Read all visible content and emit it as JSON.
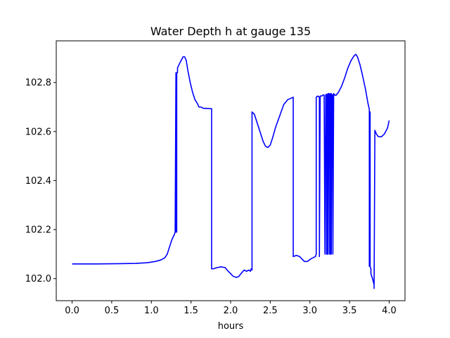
{
  "chart_data": {
    "type": "line",
    "title": "Water Depth h at gauge 135",
    "xlabel": "hours",
    "ylabel": "",
    "xlim": [
      -0.2,
      4.2
    ],
    "ylim": [
      101.91,
      102.97
    ],
    "xticks": [
      0.0,
      0.5,
      1.0,
      1.5,
      2.0,
      2.5,
      3.0,
      3.5,
      4.0
    ],
    "xtick_labels": [
      "0.0",
      "0.5",
      "1.0",
      "1.5",
      "2.0",
      "2.5",
      "3.0",
      "3.5",
      "4.0"
    ],
    "yticks": [
      102.0,
      102.2,
      102.4,
      102.6,
      102.8
    ],
    "ytick_labels": [
      "102.0",
      "102.2",
      "102.4",
      "102.6",
      "102.8"
    ],
    "grid": false,
    "line_color": "#0000ff",
    "series": [
      {
        "x": [
          0.0,
          0.3,
          0.6,
          0.8,
          0.95,
          1.05,
          1.12,
          1.17,
          1.2,
          1.23,
          1.26,
          1.29,
          1.3,
          1.31,
          1.31,
          1.32,
          1.32,
          1.33,
          1.33,
          1.36,
          1.4,
          1.42,
          1.44,
          1.46,
          1.49,
          1.52,
          1.55,
          1.58,
          1.6,
          1.63,
          1.65,
          1.7,
          1.76,
          1.76,
          1.78,
          1.83,
          1.88,
          1.93,
          1.97,
          2.0,
          2.03,
          2.07,
          2.1,
          2.13,
          2.17,
          2.2,
          2.23,
          2.25,
          2.26,
          2.27,
          2.27,
          2.3,
          2.33,
          2.37,
          2.41,
          2.44,
          2.47,
          2.5,
          2.53,
          2.57,
          2.62,
          2.67,
          2.72,
          2.79,
          2.79,
          2.83,
          2.87,
          2.9,
          2.93,
          2.97,
          3.01,
          3.04,
          3.07,
          3.08,
          3.08,
          3.1,
          3.12,
          3.12,
          3.13,
          3.13,
          3.15,
          3.17,
          3.18,
          3.19,
          3.2,
          3.21,
          3.21,
          3.22,
          3.22,
          3.23,
          3.23,
          3.24,
          3.25,
          3.25,
          3.26,
          3.26,
          3.27,
          3.27,
          3.28,
          3.29,
          3.29,
          3.3,
          3.31,
          3.32,
          3.33,
          3.36,
          3.4,
          3.44,
          3.48,
          3.52,
          3.56,
          3.58,
          3.6,
          3.63,
          3.66,
          3.7,
          3.73,
          3.75,
          3.75,
          3.76,
          3.76,
          3.77,
          3.77,
          3.79,
          3.81,
          3.81,
          3.82,
          3.84,
          3.86,
          3.9,
          3.94,
          3.98,
          4.0
        ],
        "y": [
          102.06,
          102.06,
          102.061,
          102.062,
          102.065,
          102.07,
          102.076,
          102.085,
          102.1,
          102.13,
          102.16,
          102.18,
          102.19,
          102.84,
          102.19,
          102.19,
          102.84,
          102.84,
          102.86,
          102.88,
          102.905,
          102.905,
          102.89,
          102.85,
          102.8,
          102.76,
          102.73,
          102.715,
          102.7,
          102.7,
          102.695,
          102.694,
          102.693,
          102.04,
          102.04,
          102.045,
          102.048,
          102.045,
          102.03,
          102.02,
          102.01,
          102.005,
          102.008,
          102.02,
          102.035,
          102.03,
          102.035,
          102.03,
          102.04,
          102.035,
          102.68,
          102.67,
          102.64,
          102.6,
          102.56,
          102.54,
          102.535,
          102.545,
          102.575,
          102.62,
          102.665,
          102.71,
          102.73,
          102.74,
          102.09,
          102.095,
          102.09,
          102.08,
          102.07,
          102.07,
          102.08,
          102.085,
          102.09,
          102.1,
          102.74,
          102.745,
          102.74,
          102.09,
          102.74,
          102.745,
          102.745,
          102.75,
          102.748,
          102.1,
          102.75,
          102.752,
          102.1,
          102.752,
          102.1,
          102.755,
          102.1,
          102.755,
          102.75,
          102.1,
          102.755,
          102.1,
          102.755,
          102.1,
          102.75,
          102.75,
          102.1,
          102.755,
          102.75,
          102.748,
          102.748,
          102.76,
          102.785,
          102.82,
          102.86,
          102.89,
          102.91,
          102.915,
          102.905,
          102.875,
          102.835,
          102.775,
          102.72,
          102.69,
          102.05,
          102.68,
          102.05,
          102.04,
          102.02,
          102.0,
          101.975,
          101.96,
          102.605,
          102.59,
          102.58,
          102.578,
          102.59,
          102.615,
          102.645
        ]
      }
    ]
  }
}
